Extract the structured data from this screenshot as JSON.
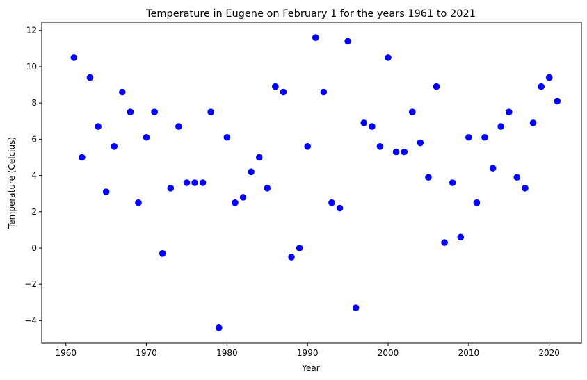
{
  "chart_data": {
    "type": "scatter",
    "title": "Temperature in Eugene on February 1 for the years 1961 to 2021",
    "xlabel": "Year",
    "ylabel": "Temperature (Celcius)",
    "xlim": [
      1957.0,
      2024.0
    ],
    "ylim": [
      -5.25,
      12.45
    ],
    "xticks": [
      1960,
      1970,
      1980,
      1990,
      2000,
      2010,
      2020
    ],
    "yticks": [
      -4,
      -2,
      0,
      2,
      4,
      6,
      8,
      10,
      12
    ],
    "ytick_labels": [
      "−4",
      "−2",
      "0",
      "2",
      "4",
      "6",
      "8",
      "10",
      "12"
    ],
    "grid": false,
    "marker_color": "#0000ff",
    "x": [
      1961,
      1962,
      1963,
      1964,
      1965,
      1966,
      1967,
      1968,
      1969,
      1970,
      1971,
      1972,
      1973,
      1974,
      1975,
      1976,
      1977,
      1978,
      1979,
      1980,
      1981,
      1982,
      1983,
      1984,
      1985,
      1986,
      1987,
      1988,
      1989,
      1990,
      1991,
      1992,
      1993,
      1994,
      1995,
      1996,
      1997,
      1998,
      1999,
      2000,
      2001,
      2002,
      2003,
      2004,
      2005,
      2006,
      2007,
      2008,
      2009,
      2010,
      2011,
      2012,
      2013,
      2014,
      2015,
      2016,
      2017,
      2018,
      2019,
      2020,
      2021
    ],
    "y": [
      10.5,
      5.0,
      9.4,
      6.7,
      3.1,
      5.6,
      8.6,
      7.5,
      2.5,
      6.1,
      7.5,
      -0.3,
      3.3,
      6.7,
      3.6,
      3.6,
      3.6,
      7.5,
      -4.4,
      6.1,
      2.5,
      2.8,
      4.2,
      5.0,
      3.3,
      8.9,
      8.6,
      -0.5,
      0.0,
      5.6,
      11.6,
      8.6,
      2.5,
      2.2,
      11.4,
      -3.3,
      6.9,
      6.7,
      5.6,
      10.5,
      5.3,
      5.3,
      7.5,
      5.8,
      3.9,
      8.9,
      0.3,
      3.6,
      0.6,
      6.1,
      2.5,
      6.1,
      4.4,
      6.7,
      7.5,
      3.9,
      3.3,
      6.9,
      8.9,
      9.4,
      8.1
    ]
  }
}
